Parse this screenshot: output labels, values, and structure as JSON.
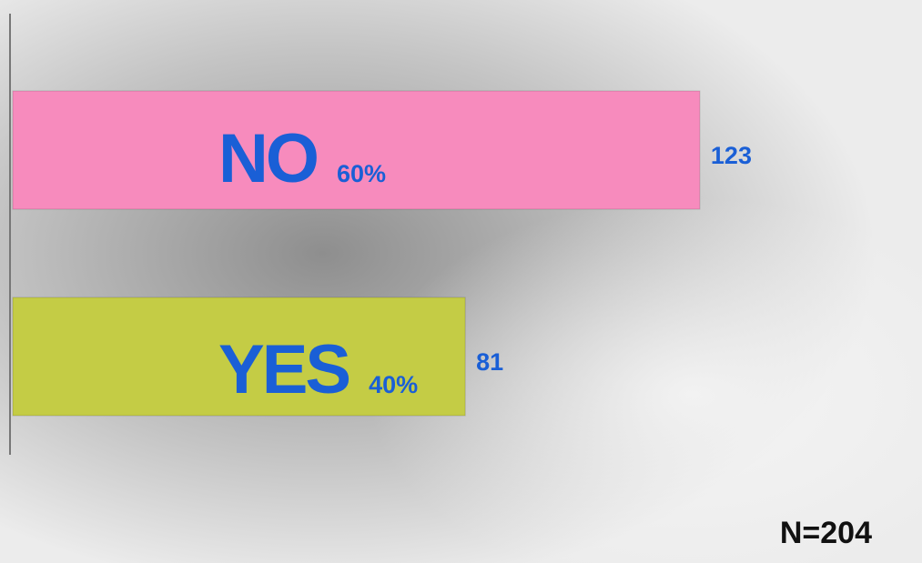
{
  "chart_data": {
    "type": "bar",
    "orientation": "horizontal",
    "categories": [
      "NO",
      "YES"
    ],
    "values": [
      123,
      81
    ],
    "percent_labels": [
      "60%",
      "40%"
    ],
    "colors": [
      "#f78bbd",
      "#c4cc45"
    ],
    "xlim": [
      0,
      160
    ],
    "annotation": "N=204"
  }
}
